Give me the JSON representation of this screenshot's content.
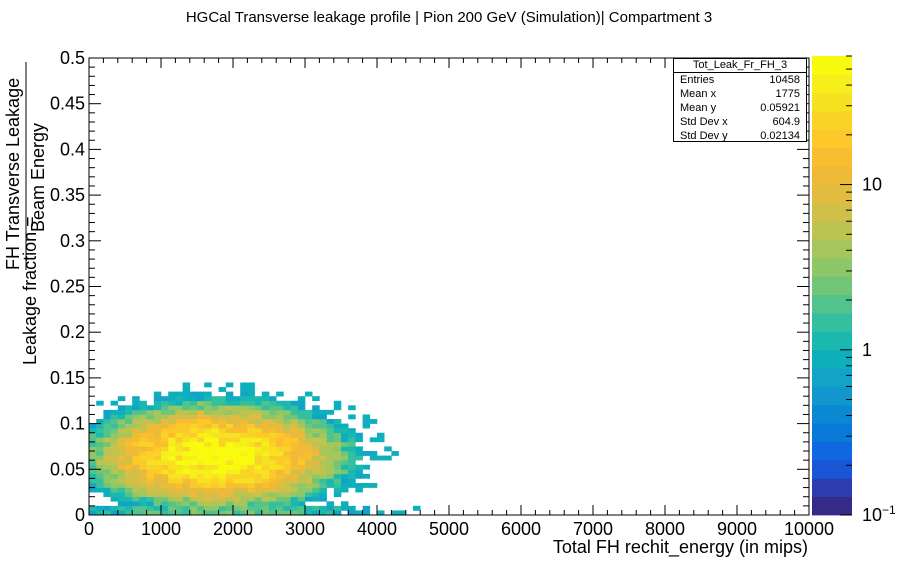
{
  "chart_data": {
    "type": "heatmap",
    "title": "HGCal Transverse leakage profile | Pion 200 GeV (Simulation)| Compartment 3",
    "xlabel": "Total FH rechit_energy (in mips)",
    "ylabel_prefix": "Leakage fraction =",
    "ylabel_numerator": "FH Transverse Leakage",
    "ylabel_denominator": "Beam Energy",
    "xlim": [
      0,
      10000
    ],
    "ylim": [
      0,
      0.5
    ],
    "x_ticks": [
      "0",
      "1000",
      "2000",
      "3000",
      "4000",
      "5000",
      "6000",
      "7000",
      "8000",
      "9000",
      "10000"
    ],
    "y_ticks": [
      "0",
      "0.05",
      "0.1",
      "0.15",
      "0.2",
      "0.25",
      "0.3",
      "0.35",
      "0.4",
      "0.45",
      "0.5"
    ],
    "z_scale": "log",
    "zlim": [
      0.1,
      60
    ],
    "z_ticks": [
      "10",
      "1"
    ],
    "z_tick_min": "10",
    "z_tick_min_exp": "−1",
    "grid": false,
    "density_model": {
      "mean_x": 1775,
      "mean_y": 0.05921,
      "std_x": 604.9,
      "std_y": 0.02134,
      "entries": 10458,
      "bin_x": 100,
      "bin_y": 0.005,
      "x_extent": [
        0,
        4900
      ],
      "y_extent": [
        0,
        0.165
      ]
    },
    "stats": {
      "name": "Tot_Leak_Fr_FH_3",
      "rows": [
        {
          "label": "Entries",
          "value": "10458"
        },
        {
          "label": "Mean x",
          "value": "1775"
        },
        {
          "label": "Mean y",
          "value": "0.05921"
        },
        {
          "label": "Std Dev x",
          "value": "604.9"
        },
        {
          "label": "Std Dev y",
          "value": "0.02134"
        }
      ]
    },
    "palette": [
      "#352a87",
      "#2d3db0",
      "#1a55d6",
      "#0f68df",
      "#0b79d8",
      "#0a88d1",
      "#1196cd",
      "#12a3c7",
      "#0eafbd",
      "#1bb8b0",
      "#34bf9e",
      "#52c38a",
      "#70c676",
      "#8cc768",
      "#a6c65b",
      "#bdc350",
      "#d0bf48",
      "#e1bc3e",
      "#efba37",
      "#f9bd30",
      "#fcc82a",
      "#f9d426",
      "#f6e221",
      "#f6ef1b",
      "#f9fb0e"
    ]
  }
}
